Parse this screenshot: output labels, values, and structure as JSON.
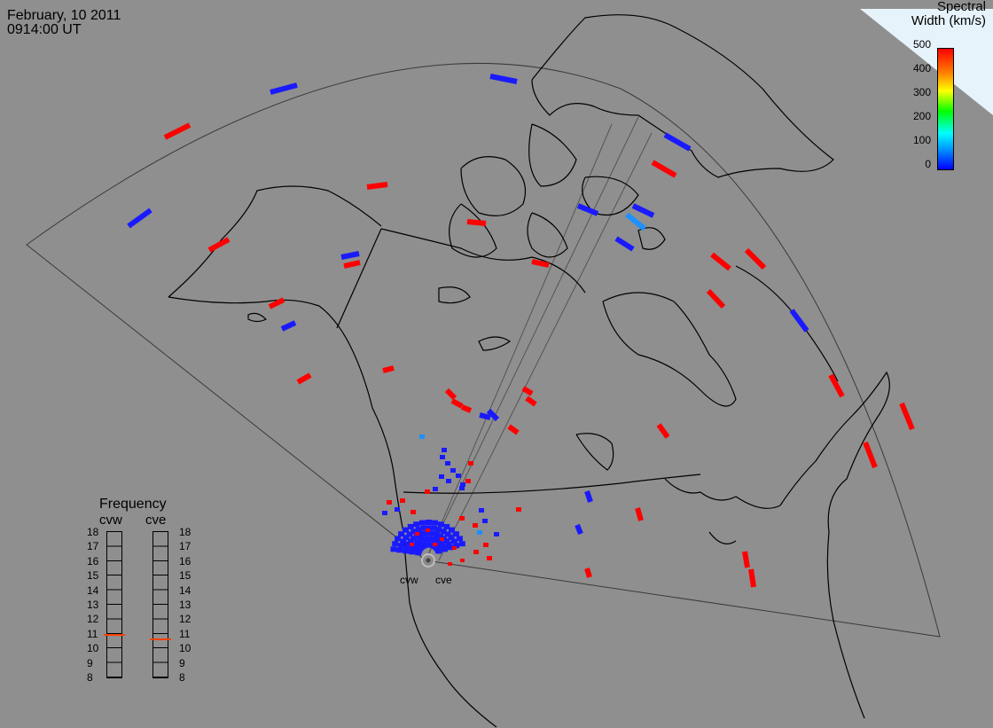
{
  "header": {
    "date": "February, 10 2011",
    "time": "0914:00 UT"
  },
  "colorbar": {
    "title_line1": "Spectral",
    "title_line2": "Width (km/s)",
    "ticks": [
      "500",
      "400",
      "300",
      "200",
      "100",
      "0"
    ],
    "colors": [
      "#ff0000",
      "#ff8000",
      "#ffff00",
      "#00ff00",
      "#00ffff",
      "#0000ff"
    ]
  },
  "frequency": {
    "title": "Frequency",
    "radars": [
      {
        "name": "cvw",
        "value_mhz": 10.9
      },
      {
        "name": "cve",
        "value_mhz": 10.6
      }
    ],
    "scale": [
      "18",
      "17",
      "16",
      "15",
      "14",
      "13",
      "12",
      "11",
      "10",
      "9",
      "8"
    ],
    "marker_color": "#ff4000"
  },
  "stations": [
    {
      "name": "cvw"
    },
    {
      "name": "cve"
    }
  ],
  "legend_colors": {
    "low": "#1a1aff",
    "mid": "#1e90ff",
    "high": "#ff0000",
    "background": "#8f8f8f"
  }
}
